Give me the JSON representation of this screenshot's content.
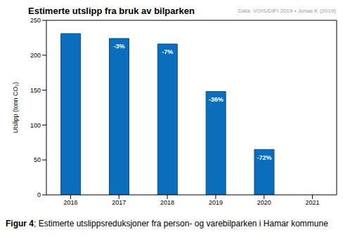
{
  "chart_data": {
    "type": "bar",
    "title": "Estimerte utslipp fra bruk av bilparken",
    "source": "Data: VOIS/DIFI 2019 • Jonas K (2019)",
    "y_label": "Utslipp (tonn CO₂)",
    "categories": [
      "2016",
      "2017",
      "2018",
      "2019",
      "2020",
      "2021"
    ],
    "values": [
      231,
      224,
      216,
      148,
      65,
      null
    ],
    "annotations": [
      null,
      "-3%",
      "-7%",
      "-36%",
      "-72%",
      null
    ],
    "color": "#0a6ebd",
    "ylim": [
      0,
      250
    ],
    "yticks": [
      0,
      50,
      100,
      150,
      200,
      250
    ],
    "grid": false,
    "caption_label": "Figur 4",
    "caption": "; Estimerte utslippsreduksjoner fra person- og varebilparken i Hamar kommune"
  }
}
